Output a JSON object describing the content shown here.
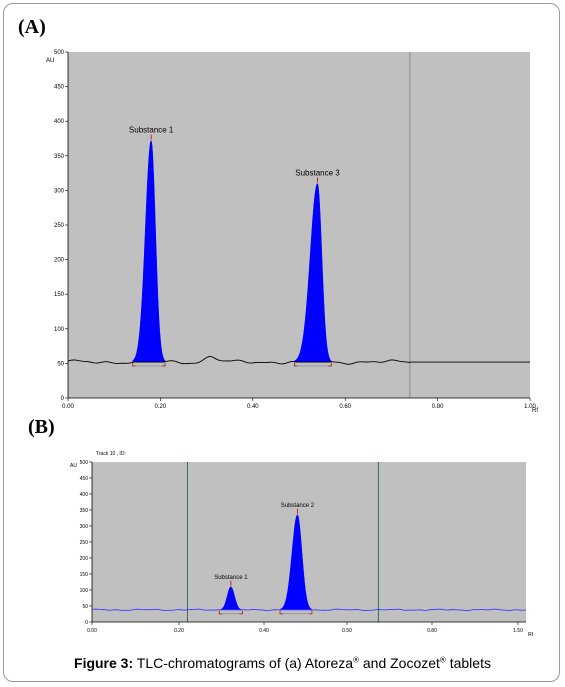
{
  "panels": {
    "a_label": "(A)",
    "b_label": "(B)"
  },
  "caption": {
    "figure_label": "Figure 3:",
    "text_before": " TLC-chromatograms of (a) Atoreza",
    "reg1": "®",
    "text_middle": " and Zocozet",
    "reg2": "®",
    "text_after": " tablets"
  },
  "colors": {
    "plot_bg": "#c0c0c0",
    "peak_fill": "#0000ff",
    "baseline_a": "#000000",
    "baseline_b": "#3b3bff",
    "marker_red": "#cc0000",
    "vline_a": "#8a8a8a",
    "vline_b": "#2f6f5f"
  },
  "chart_data": [
    {
      "type": "line",
      "panel": "A",
      "ylabel": "AU",
      "xlabel": "Rf",
      "xlim": [
        0.0,
        1.0
      ],
      "ylim": [
        0,
        500
      ],
      "x_ticks": [
        "0.00",
        "0.20",
        "0.40",
        "0.60",
        "0.80",
        "1.00"
      ],
      "y_ticks": [
        "0",
        "50",
        "100",
        "150",
        "200",
        "250",
        "300",
        "350",
        "400",
        "450",
        "500"
      ],
      "baseline": 52,
      "vertical_line_x": 0.74,
      "peaks": [
        {
          "name": "Substance 1",
          "rf": 0.18,
          "height": 372,
          "start": 0.14,
          "end": 0.21
        },
        {
          "name": "Substance 3",
          "rf": 0.54,
          "height": 310,
          "start": 0.49,
          "end": 0.57
        }
      ]
    },
    {
      "type": "line",
      "panel": "B",
      "track_label": "Track 10 , ID:",
      "ylabel": "AU",
      "xlabel": "Rf",
      "xlim": [
        0.0,
        1.5
      ],
      "ylim": [
        0,
        500
      ],
      "x_ticks": [
        "0.00",
        "0.20",
        "0.40",
        "0.50",
        "0.80",
        "1.50"
      ],
      "y_ticks": [
        "0",
        "50",
        "100",
        "150",
        "200",
        "250",
        "300",
        "350",
        "400",
        "450",
        "500"
      ],
      "baseline": 38,
      "vertical_lines_x": [
        0.33,
        0.99
      ],
      "peaks": [
        {
          "name": "Substance 1",
          "rf": 0.48,
          "height": 110,
          "start": 0.44,
          "end": 0.52
        },
        {
          "name": "Substance 2",
          "rf": 0.71,
          "height": 335,
          "start": 0.65,
          "end": 0.76
        }
      ]
    }
  ]
}
